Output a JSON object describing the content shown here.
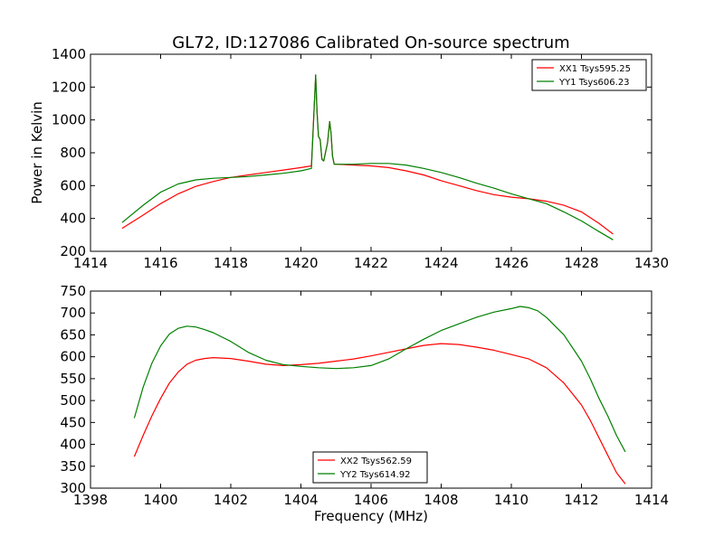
{
  "figure": {
    "title": "GL72, ID:127086 Calibrated On-source spectrum"
  },
  "chart_data": [
    {
      "type": "line",
      "title": "GL72, ID:127086 Calibrated On-source spectrum",
      "xlabel": "",
      "ylabel": "Power in Kelvin",
      "xlim": [
        1414,
        1430
      ],
      "ylim": [
        200,
        1400
      ],
      "xticks": [
        1414,
        1416,
        1418,
        1420,
        1422,
        1424,
        1426,
        1428,
        1430
      ],
      "yticks": [
        200,
        400,
        600,
        800,
        1000,
        1200,
        1400
      ],
      "grid": false,
      "legend_position": "upper right",
      "series": [
        {
          "name": "XX1 Tsys595.25",
          "color": "#ff0000",
          "x": [
            1414.9,
            1415.5,
            1416.0,
            1416.5,
            1417.0,
            1417.5,
            1418.0,
            1418.5,
            1419.0,
            1419.5,
            1420.0,
            1420.3,
            1420.42,
            1420.46,
            1420.5,
            1420.55,
            1420.6,
            1420.65,
            1420.7,
            1420.76,
            1420.82,
            1420.86,
            1420.9,
            1420.95,
            1421.0,
            1421.5,
            1422.0,
            1422.5,
            1423.0,
            1423.5,
            1424.0,
            1424.5,
            1425.0,
            1425.5,
            1426.0,
            1426.5,
            1427.0,
            1427.5,
            1428.0,
            1428.5,
            1428.9
          ],
          "y": [
            340,
            420,
            490,
            550,
            595,
            625,
            650,
            665,
            680,
            695,
            710,
            720,
            1270,
            1050,
            900,
            880,
            760,
            750,
            800,
            860,
            990,
            920,
            780,
            730,
            730,
            725,
            720,
            710,
            690,
            665,
            630,
            600,
            570,
            545,
            530,
            520,
            505,
            480,
            440,
            370,
            305
          ]
        },
        {
          "name": "YY1 Tsys606.23",
          "color": "#008000",
          "x": [
            1414.9,
            1415.5,
            1416.0,
            1416.5,
            1417.0,
            1417.5,
            1418.0,
            1418.5,
            1419.0,
            1419.5,
            1420.0,
            1420.3,
            1420.42,
            1420.46,
            1420.5,
            1420.55,
            1420.6,
            1420.65,
            1420.7,
            1420.76,
            1420.82,
            1420.86,
            1420.9,
            1420.95,
            1421.0,
            1421.5,
            1422.0,
            1422.5,
            1423.0,
            1423.5,
            1424.0,
            1424.5,
            1425.0,
            1425.5,
            1426.0,
            1426.5,
            1427.0,
            1427.5,
            1428.0,
            1428.5,
            1428.9
          ],
          "y": [
            375,
            480,
            560,
            610,
            635,
            645,
            650,
            655,
            665,
            675,
            690,
            705,
            1275,
            1050,
            900,
            880,
            760,
            750,
            800,
            860,
            990,
            920,
            780,
            730,
            730,
            730,
            735,
            735,
            725,
            705,
            680,
            650,
            615,
            585,
            550,
            520,
            490,
            440,
            385,
            320,
            270
          ]
        }
      ]
    },
    {
      "type": "line",
      "title": "",
      "xlabel": "Frequency (MHz)",
      "ylabel": "",
      "xlim": [
        1398,
        1414
      ],
      "ylim": [
        300,
        750
      ],
      "xticks": [
        1398,
        1400,
        1402,
        1404,
        1406,
        1408,
        1410,
        1412,
        1414
      ],
      "yticks": [
        300,
        350,
        400,
        450,
        500,
        550,
        600,
        650,
        700,
        750
      ],
      "grid": false,
      "legend_position": "lower center",
      "series": [
        {
          "name": "XX2 Tsys562.59",
          "color": "#ff0000",
          "x": [
            1399.25,
            1399.5,
            1399.75,
            1400.0,
            1400.25,
            1400.5,
            1400.75,
            1401.0,
            1401.25,
            1401.5,
            1401.75,
            1402.0,
            1402.5,
            1403.0,
            1403.5,
            1404.0,
            1404.5,
            1405.0,
            1405.5,
            1406.0,
            1406.5,
            1407.0,
            1407.5,
            1408.0,
            1408.5,
            1409.0,
            1409.5,
            1410.0,
            1410.5,
            1411.0,
            1411.5,
            1412.0,
            1412.25,
            1412.5,
            1412.75,
            1413.0,
            1413.25
          ],
          "y": [
            372,
            420,
            465,
            505,
            540,
            565,
            583,
            592,
            596,
            598,
            597,
            596,
            590,
            583,
            580,
            582,
            585,
            590,
            595,
            602,
            610,
            618,
            626,
            630,
            628,
            622,
            615,
            605,
            595,
            575,
            540,
            490,
            455,
            415,
            375,
            335,
            310
          ]
        },
        {
          "name": "YY2 Tsys614.92",
          "color": "#008000",
          "x": [
            1399.25,
            1399.5,
            1399.75,
            1400.0,
            1400.25,
            1400.5,
            1400.75,
            1401.0,
            1401.25,
            1401.5,
            1401.75,
            1402.0,
            1402.5,
            1403.0,
            1403.5,
            1404.0,
            1404.5,
            1405.0,
            1405.5,
            1406.0,
            1406.5,
            1407.0,
            1407.5,
            1408.0,
            1408.5,
            1409.0,
            1409.5,
            1410.0,
            1410.25,
            1410.5,
            1410.75,
            1411.0,
            1411.5,
            1412.0,
            1412.25,
            1412.5,
            1412.75,
            1413.0,
            1413.25
          ],
          "y": [
            460,
            530,
            585,
            625,
            652,
            665,
            670,
            668,
            662,
            655,
            645,
            635,
            610,
            592,
            582,
            578,
            575,
            573,
            575,
            580,
            595,
            618,
            640,
            660,
            675,
            690,
            702,
            710,
            715,
            712,
            705,
            690,
            650,
            590,
            550,
            505,
            465,
            420,
            383
          ]
        }
      ]
    }
  ]
}
